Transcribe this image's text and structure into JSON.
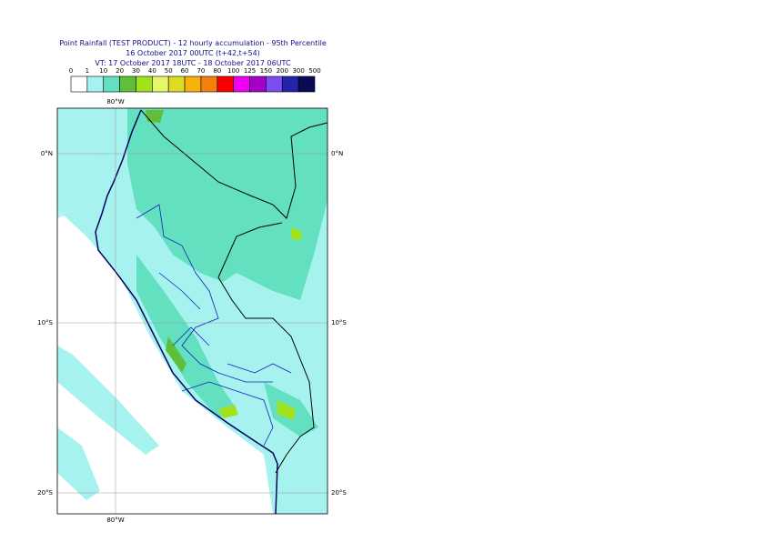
{
  "header": {
    "title_lines": [
      "Point Rainfall (TEST PRODUCT) - 12 hourly accumulation - 95th Percentile",
      "16 October 2017 00UTC (t+42,t+54)",
      "VT: 17 October 2017 18UTC - 18 October 2017 06UTC"
    ]
  },
  "legend": {
    "labels": [
      "0",
      "1",
      "10",
      "20",
      "30",
      "40",
      "50",
      "60",
      "70",
      "80",
      "100",
      "125",
      "150",
      "200",
      "300",
      "500"
    ],
    "colors": [
      "#ffffff",
      "#a6f2ef",
      "#62e0bf",
      "#5fbf3a",
      "#a2e21c",
      "#e6f56a",
      "#dcdc24",
      "#f4b20a",
      "#f3800c",
      "#f80000",
      "#f000f0",
      "#a300c8",
      "#7a4ef2",
      "#2424a8",
      "#0a0a55"
    ]
  },
  "map": {
    "lon_labels": [
      "80°W"
    ],
    "lat_labels": [
      "0°N",
      "10°S",
      "20°S"
    ]
  }
}
